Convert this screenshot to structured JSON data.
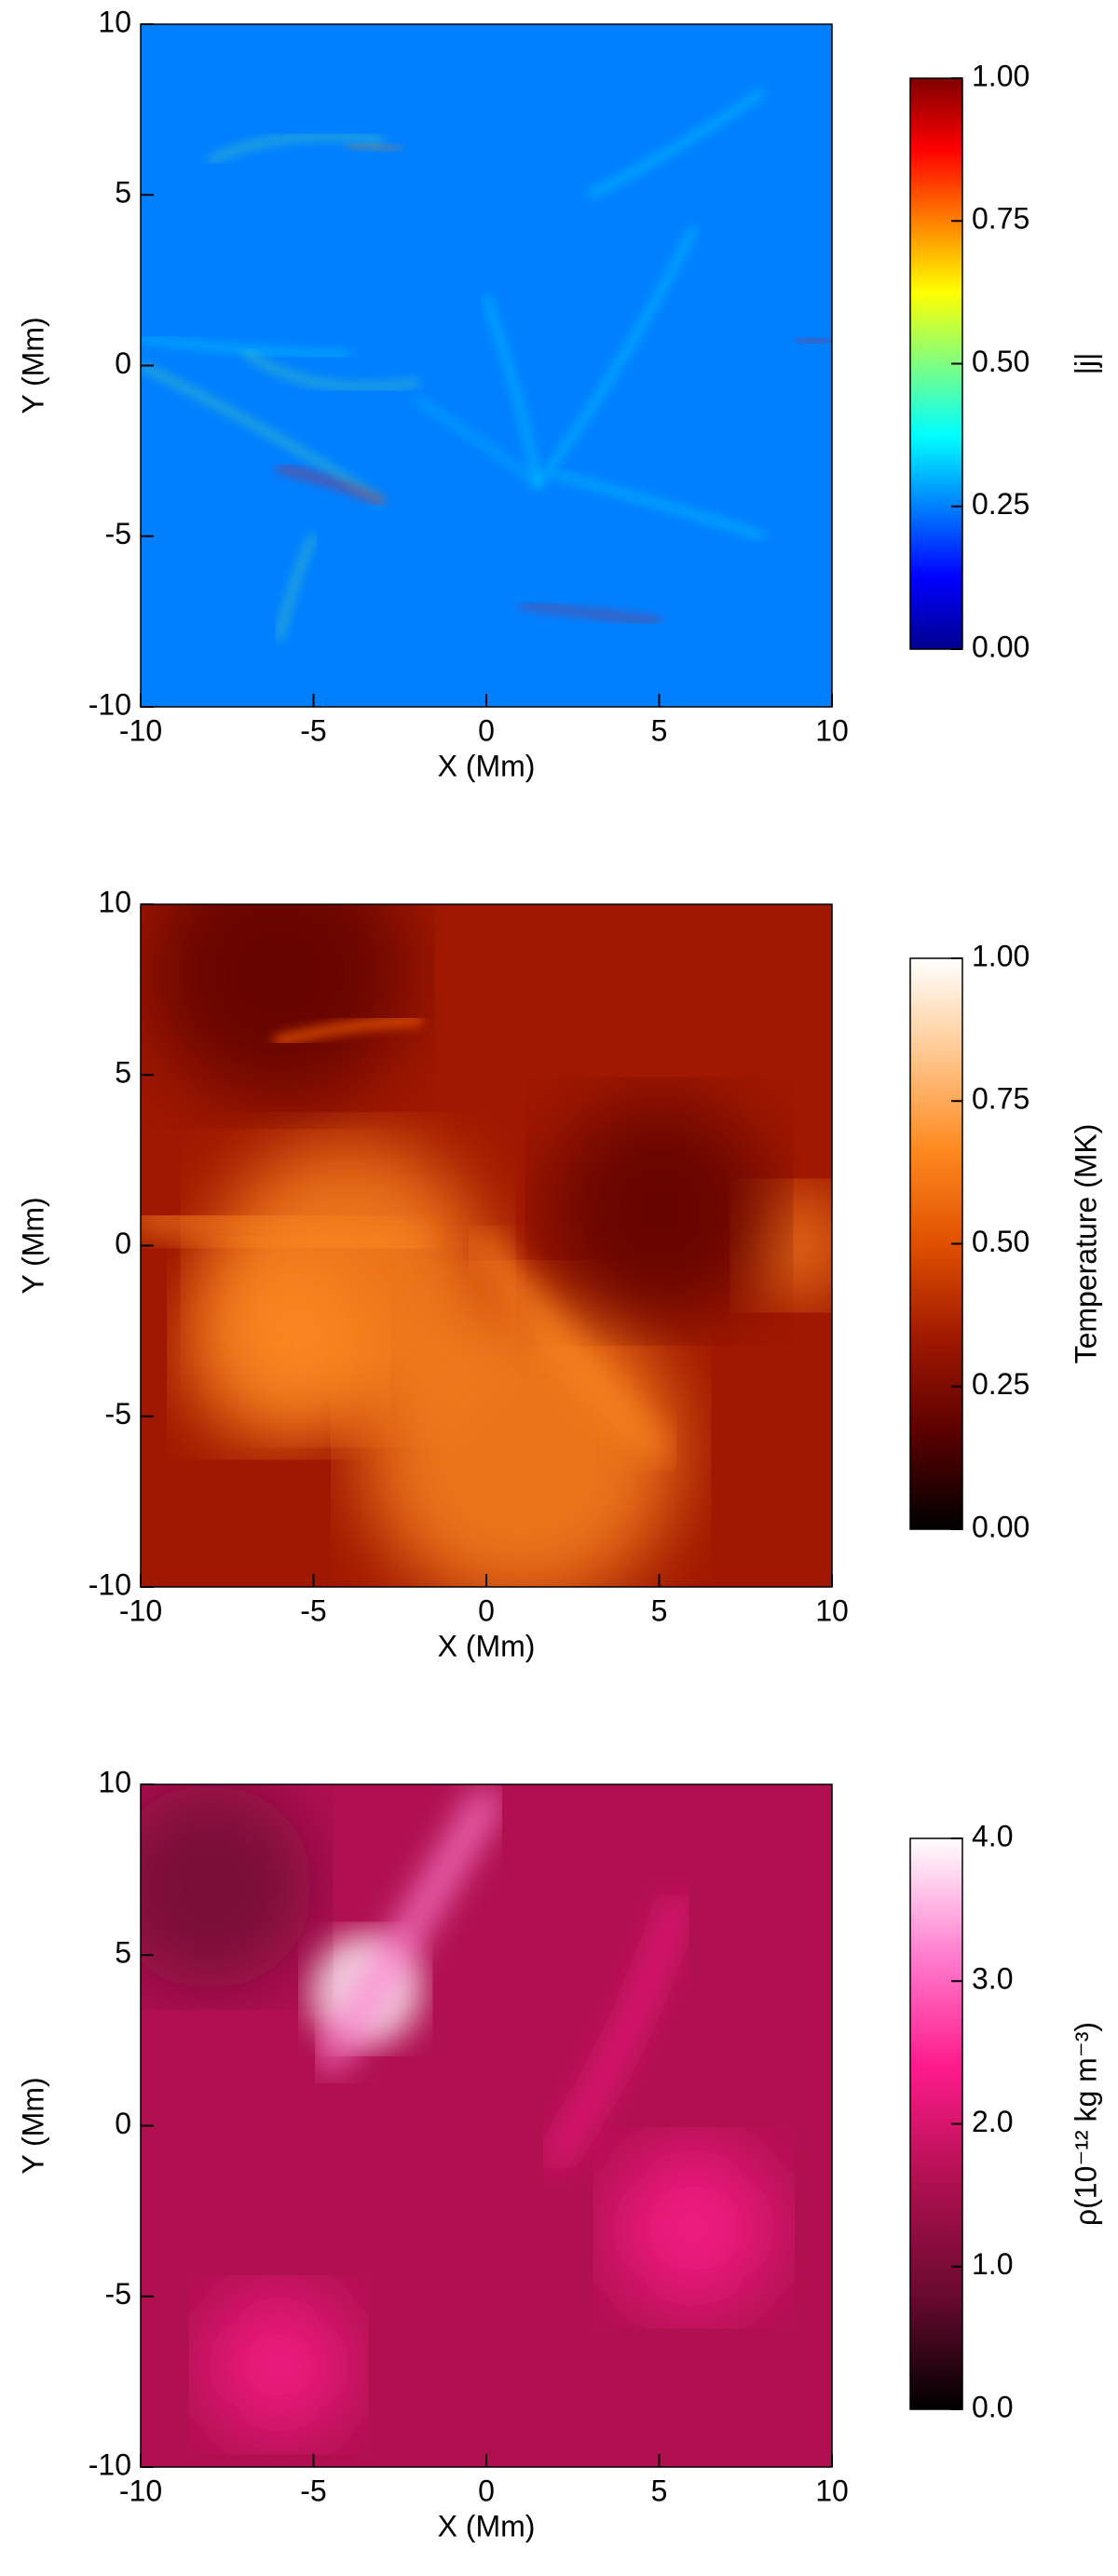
{
  "chart_data": [
    {
      "type": "heatmap",
      "xlabel": "X (Mm)",
      "ylabel": "Y (Mm)",
      "xlim": [
        -10,
        10
      ],
      "ylim": [
        -10,
        10
      ],
      "xticks": [
        -10,
        -5,
        0,
        5,
        10
      ],
      "yticks": [
        -10,
        -5,
        0,
        5,
        10
      ],
      "colorbar": {
        "label": "|j|",
        "lim": [
          0,
          1
        ],
        "ticks": [
          {
            "value": 0,
            "label": "0.00"
          },
          {
            "value": 0.25,
            "label": "0.25"
          },
          {
            "value": 0.5,
            "label": "0.50"
          },
          {
            "value": 0.75,
            "label": "0.75"
          },
          {
            "value": 1,
            "label": "1.00"
          }
        ],
        "colormap": [
          "#00008f",
          "#0000ff",
          "#0080ff",
          "#00ffff",
          "#80ff80",
          "#ffff00",
          "#ff8000",
          "#ff0000",
          "#800000"
        ]
      }
    },
    {
      "type": "heatmap",
      "xlabel": "X (Mm)",
      "ylabel": "Y (Mm)",
      "xlim": [
        -10,
        10
      ],
      "ylim": [
        -10,
        10
      ],
      "xticks": [
        -10,
        -5,
        0,
        5,
        10
      ],
      "yticks": [
        -10,
        -5,
        0,
        5,
        10
      ],
      "colorbar": {
        "label": "Temperature (MK)",
        "lim": [
          0,
          1
        ],
        "ticks": [
          {
            "value": 0,
            "label": "0.00"
          },
          {
            "value": 0.25,
            "label": "0.25"
          },
          {
            "value": 0.5,
            "label": "0.50"
          },
          {
            "value": 0.75,
            "label": "0.75"
          },
          {
            "value": 1,
            "label": "1.00"
          }
        ],
        "colormap": [
          "#000000",
          "#5a0000",
          "#a01800",
          "#e05000",
          "#ff8a20",
          "#ffc890",
          "#ffffff"
        ]
      }
    },
    {
      "type": "heatmap",
      "xlabel": "X (Mm)",
      "ylabel": "Y (Mm)",
      "xlim": [
        -10,
        10
      ],
      "ylim": [
        -10,
        10
      ],
      "xticks": [
        -10,
        -5,
        0,
        5,
        10
      ],
      "yticks": [
        -10,
        -5,
        0,
        5,
        10
      ],
      "colorbar": {
        "label": "ρ(10⁻¹² kg m⁻³)",
        "lim": [
          0,
          4
        ],
        "ticks": [
          {
            "value": 0,
            "label": "0.0"
          },
          {
            "value": 1,
            "label": "1.0"
          },
          {
            "value": 2,
            "label": "2.0"
          },
          {
            "value": 3,
            "label": "3.0"
          },
          {
            "value": 4,
            "label": "4.0"
          }
        ],
        "colormap": [
          "#000000",
          "#6a0a30",
          "#b01050",
          "#ff1a8c",
          "#ff80d0",
          "#ffffff"
        ]
      }
    }
  ]
}
